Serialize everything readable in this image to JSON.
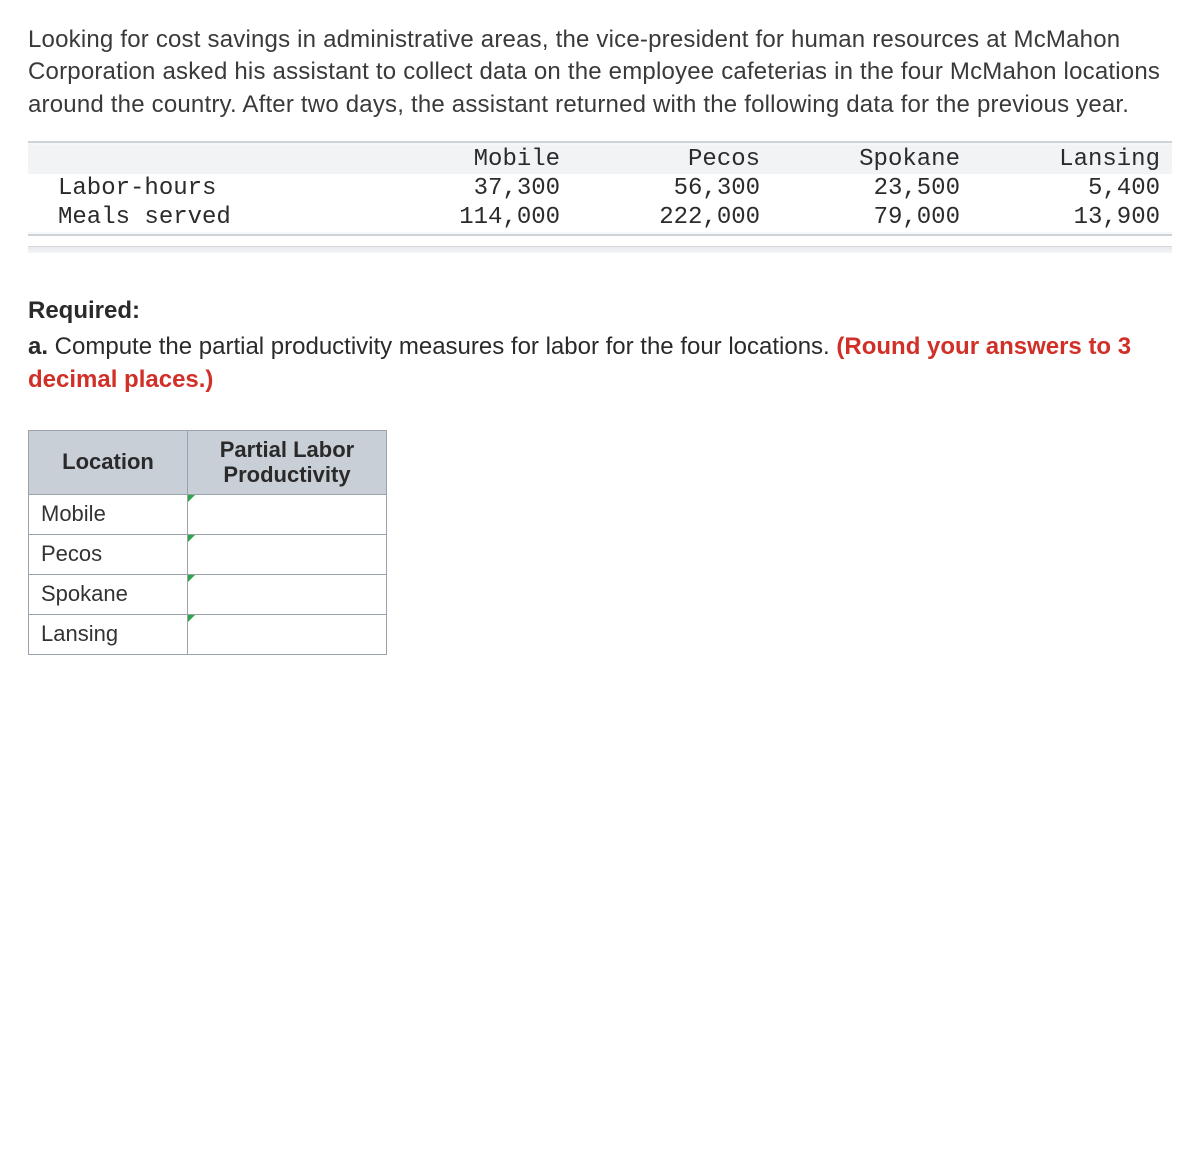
{
  "intro_text": "Looking for cost savings in administrative areas, the vice-president for human resources at McMahon Corporation asked his assistant to collect data on the employee cafeterias in the four McMahon locations around the country. After two days, the assistant returned with the following data for the previous year.",
  "data_table": {
    "columns": [
      "",
      "Mobile",
      "Pecos",
      "Spokane",
      "Lansing"
    ],
    "rows": [
      {
        "label": "Labor-hours",
        "values": [
          "37,300",
          "56,300",
          "23,500",
          "5,400"
        ]
      },
      {
        "label": "Meals served",
        "values": [
          "114,000",
          "222,000",
          "79,000",
          "13,900"
        ]
      }
    ],
    "font_family": "Courier New",
    "header_bg": "#f2f3f5",
    "border_color": "#cfd2d6",
    "text_color": "#2b2b2b"
  },
  "required_label": "Required:",
  "question_a_prefix": "a.",
  "question_a_text": " Compute the partial productivity measures for labor for the four locations. ",
  "question_a_red": "(Round your answers to 3 decimal places.)",
  "answer_table": {
    "headers": {
      "location": "Location",
      "plp": "Partial Labor Productivity"
    },
    "rows": [
      "Mobile",
      "Pecos",
      "Spokane",
      "Lansing"
    ],
    "header_bg": "#c9cfd6",
    "border_color": "#9aa2ab",
    "marker_color": "#2fa54a"
  },
  "colors": {
    "body_text": "#333333",
    "red": "#d03028",
    "background": "#ffffff"
  }
}
